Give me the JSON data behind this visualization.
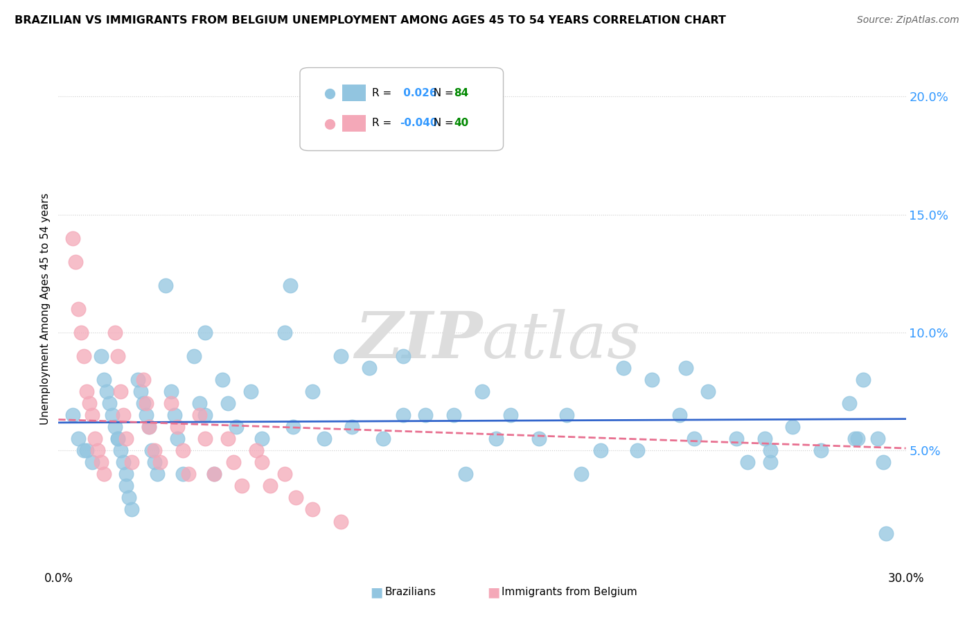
{
  "title": "BRAZILIAN VS IMMIGRANTS FROM BELGIUM UNEMPLOYMENT AMONG AGES 45 TO 54 YEARS CORRELATION CHART",
  "source": "Source: ZipAtlas.com",
  "watermark_zip": "ZIP",
  "watermark_atlas": "atlas",
  "ylim": [
    0,
    0.22
  ],
  "xlim": [
    0,
    0.3
  ],
  "yticks": [
    0.05,
    0.1,
    0.15,
    0.2
  ],
  "ytick_labels": [
    "5.0%",
    "10.0%",
    "15.0%",
    "20.0%"
  ],
  "blue_color": "#92C5E0",
  "pink_color": "#F4A8B8",
  "blue_line_color": "#3366CC",
  "pink_line_color": "#E87090",
  "blue_R": 0.026,
  "blue_N": 84,
  "pink_R": -0.04,
  "pink_N": 40,
  "blue_label": "Brazilians",
  "pink_label": "Immigrants from Belgium",
  "R_color": "#3399FF",
  "N_color": "#008800",
  "blue_x": [
    0.005,
    0.007,
    0.009,
    0.01,
    0.012,
    0.015,
    0.016,
    0.017,
    0.018,
    0.019,
    0.02,
    0.021,
    0.021,
    0.022,
    0.023,
    0.024,
    0.024,
    0.025,
    0.026,
    0.028,
    0.029,
    0.03,
    0.031,
    0.032,
    0.033,
    0.034,
    0.035,
    0.038,
    0.04,
    0.041,
    0.042,
    0.044,
    0.048,
    0.05,
    0.052,
    0.055,
    0.058,
    0.06,
    0.063,
    0.068,
    0.072,
    0.08,
    0.083,
    0.09,
    0.094,
    0.1,
    0.104,
    0.11,
    0.115,
    0.122,
    0.13,
    0.14,
    0.144,
    0.15,
    0.155,
    0.16,
    0.17,
    0.18,
    0.185,
    0.2,
    0.205,
    0.21,
    0.22,
    0.225,
    0.23,
    0.24,
    0.244,
    0.25,
    0.252,
    0.26,
    0.27,
    0.28,
    0.283,
    0.29,
    0.292,
    0.052,
    0.082,
    0.122,
    0.192,
    0.222,
    0.252,
    0.282,
    0.285,
    0.293
  ],
  "blue_y": [
    0.065,
    0.055,
    0.05,
    0.05,
    0.045,
    0.09,
    0.08,
    0.075,
    0.07,
    0.065,
    0.06,
    0.055,
    0.055,
    0.05,
    0.045,
    0.04,
    0.035,
    0.03,
    0.025,
    0.08,
    0.075,
    0.07,
    0.065,
    0.06,
    0.05,
    0.045,
    0.04,
    0.12,
    0.075,
    0.065,
    0.055,
    0.04,
    0.09,
    0.07,
    0.065,
    0.04,
    0.08,
    0.07,
    0.06,
    0.075,
    0.055,
    0.1,
    0.06,
    0.075,
    0.055,
    0.09,
    0.06,
    0.085,
    0.055,
    0.065,
    0.065,
    0.065,
    0.04,
    0.075,
    0.055,
    0.065,
    0.055,
    0.065,
    0.04,
    0.085,
    0.05,
    0.08,
    0.065,
    0.055,
    0.075,
    0.055,
    0.045,
    0.055,
    0.045,
    0.06,
    0.05,
    0.07,
    0.055,
    0.055,
    0.045,
    0.1,
    0.12,
    0.09,
    0.05,
    0.085,
    0.05,
    0.055,
    0.08,
    0.015
  ],
  "pink_x": [
    0.005,
    0.006,
    0.007,
    0.008,
    0.009,
    0.01,
    0.011,
    0.012,
    0.013,
    0.014,
    0.015,
    0.016,
    0.02,
    0.021,
    0.022,
    0.023,
    0.024,
    0.026,
    0.03,
    0.031,
    0.032,
    0.034,
    0.036,
    0.04,
    0.042,
    0.044,
    0.046,
    0.05,
    0.052,
    0.055,
    0.06,
    0.062,
    0.065,
    0.07,
    0.072,
    0.075,
    0.08,
    0.084,
    0.09,
    0.1
  ],
  "pink_y": [
    0.14,
    0.13,
    0.11,
    0.1,
    0.09,
    0.075,
    0.07,
    0.065,
    0.055,
    0.05,
    0.045,
    0.04,
    0.1,
    0.09,
    0.075,
    0.065,
    0.055,
    0.045,
    0.08,
    0.07,
    0.06,
    0.05,
    0.045,
    0.07,
    0.06,
    0.05,
    0.04,
    0.065,
    0.055,
    0.04,
    0.055,
    0.045,
    0.035,
    0.05,
    0.045,
    0.035,
    0.04,
    0.03,
    0.025,
    0.02
  ]
}
